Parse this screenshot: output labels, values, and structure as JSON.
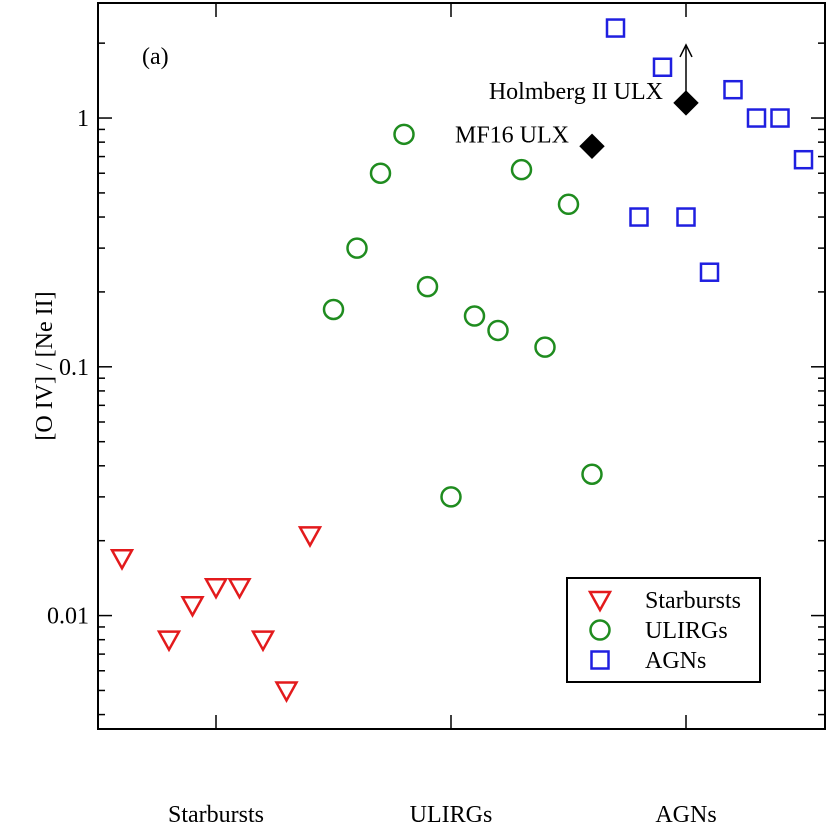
{
  "chart_data": {
    "type": "scatter",
    "panel_label": "(a)",
    "xlabel": "",
    "ylabel": "[O IV] / [Ne II]",
    "yscale": "log",
    "ylim": [
      0.0035,
      2.9
    ],
    "xlim": [
      0,
      10
    ],
    "y_ticks": [
      {
        "value": 0.01,
        "label": "0.01"
      },
      {
        "value": 0.1,
        "label": "0.1"
      },
      {
        "value": 1,
        "label": "1"
      }
    ],
    "group_labels": [
      {
        "x": 2.5,
        "label": "Starbursts"
      },
      {
        "x": 4.5,
        "label": "ULIRGs"
      },
      {
        "x": 6.5,
        "label": "AGNs"
      }
    ],
    "colors": {
      "Starbursts": "#e31a1c",
      "ULIRGs": "#1f8c1f",
      "AGNs": "#1f1fe0",
      "ULX": "#000000"
    },
    "series": [
      {
        "name": "Starbursts",
        "marker": "triangle-down",
        "points": [
          {
            "x": 0.2,
            "y": 0.017
          },
          {
            "x": 0.6,
            "y": 0.008
          },
          {
            "x": 0.8,
            "y": 0.011
          },
          {
            "x": 1.0,
            "y": 0.013
          },
          {
            "x": 1.2,
            "y": 0.013
          },
          {
            "x": 1.4,
            "y": 0.008
          },
          {
            "x": 1.6,
            "y": 0.005
          },
          {
            "x": 1.8,
            "y": 0.021
          }
        ]
      },
      {
        "name": "ULIRGs",
        "marker": "circle",
        "points": [
          {
            "x": 2.0,
            "y": 0.17
          },
          {
            "x": 2.2,
            "y": 0.3
          },
          {
            "x": 2.4,
            "y": 0.6
          },
          {
            "x": 2.6,
            "y": 0.86
          },
          {
            "x": 2.8,
            "y": 0.21
          },
          {
            "x": 3.0,
            "y": 0.03
          },
          {
            "x": 3.2,
            "y": 0.16
          },
          {
            "x": 3.4,
            "y": 0.14
          },
          {
            "x": 3.6,
            "y": 0.62
          },
          {
            "x": 3.8,
            "y": 0.12
          },
          {
            "x": 4.0,
            "y": 0.45
          },
          {
            "x": 4.2,
            "y": 0.037
          }
        ]
      },
      {
        "name": "AGNs",
        "marker": "square",
        "points": [
          {
            "x": 4.4,
            "y": 2.3
          },
          {
            "x": 4.6,
            "y": 0.4
          },
          {
            "x": 4.8,
            "y": 1.6
          },
          {
            "x": 5.0,
            "y": 0.4
          },
          {
            "x": 5.2,
            "y": 0.24
          },
          {
            "x": 5.4,
            "y": 1.3
          },
          {
            "x": 5.6,
            "y": 1.0
          },
          {
            "x": 5.8,
            "y": 1.0
          },
          {
            "x": 6.0,
            "y": 0.68
          }
        ]
      },
      {
        "name": "ULX",
        "marker": "diamond-filled",
        "points": [
          {
            "x": 4.2,
            "y": 0.77,
            "label": "MF16 ULX",
            "lower_limit": false
          },
          {
            "x": 5.0,
            "y": 1.15,
            "label": "Holmberg II ULX",
            "lower_limit": true
          }
        ]
      }
    ],
    "legend": {
      "placement": "bottom-right",
      "entries": [
        "Starbursts",
        "ULIRGs",
        "AGNs"
      ]
    }
  }
}
